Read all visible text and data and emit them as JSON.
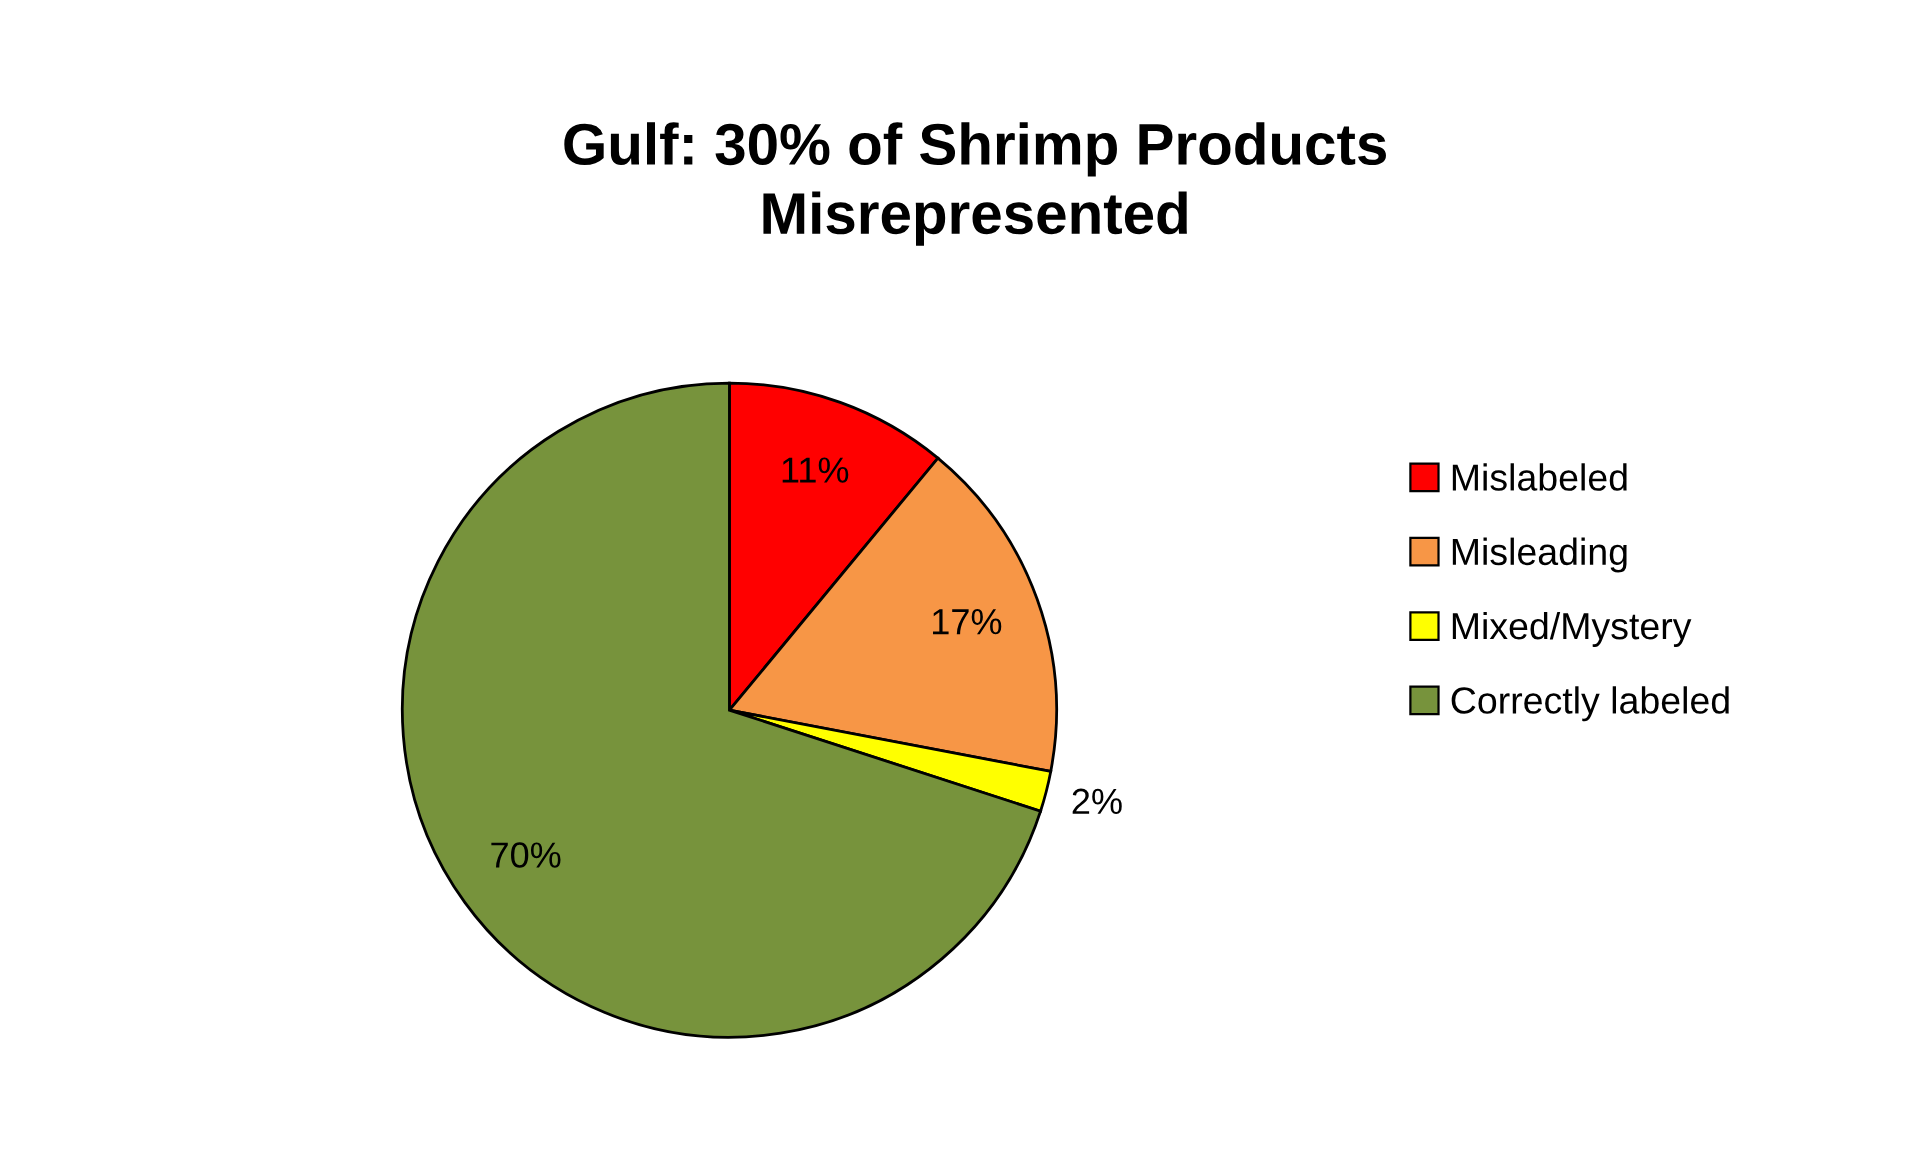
{
  "chart_data": {
    "type": "pie",
    "title": "Gulf: 30% of Shrimp Products\nMisrepresented",
    "categories": [
      "Mislabeled",
      "Misleading",
      "Mixed/Mystery",
      "Correctly labeled"
    ],
    "values": [
      11,
      17,
      2,
      70
    ],
    "colors": [
      "#ff0000",
      "#f79646",
      "#ffff00",
      "#77933c"
    ],
    "value_labels": [
      "11%",
      "17%",
      "2%",
      "70%"
    ],
    "legend": "right"
  }
}
